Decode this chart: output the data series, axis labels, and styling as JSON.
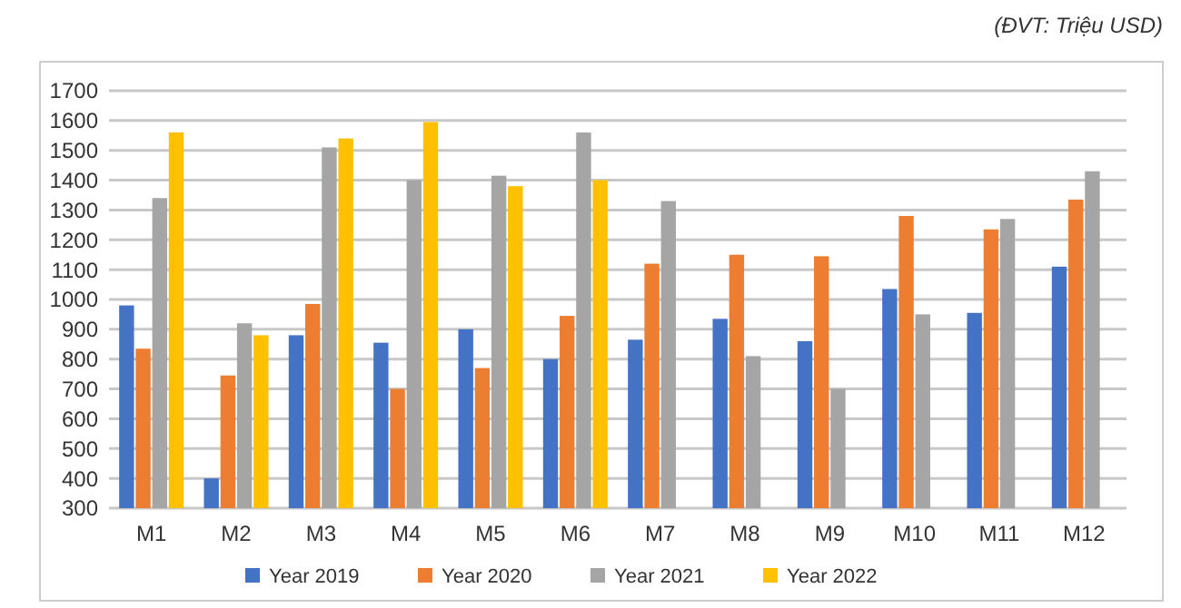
{
  "chart_data": {
    "type": "bar",
    "annotations": [
      "(ĐVT: Triệu USD)"
    ],
    "categories": [
      "M1",
      "M2",
      "M3",
      "M4",
      "M5",
      "M6",
      "M7",
      "M8",
      "M9",
      "M10",
      "M11",
      "M12"
    ],
    "series": [
      {
        "name": "Year 2019",
        "color": "#4472c4",
        "values": [
          980,
          400,
          880,
          855,
          900,
          800,
          865,
          935,
          860,
          1035,
          955,
          1110
        ]
      },
      {
        "name": "Year 2020",
        "color": "#ed7d31",
        "values": [
          835,
          745,
          985,
          700,
          770,
          945,
          1120,
          1150,
          1145,
          1280,
          1235,
          1335
        ]
      },
      {
        "name": "Year 2021",
        "color": "#a5a5a5",
        "values": [
          1340,
          920,
          1510,
          1400,
          1415,
          1560,
          1330,
          810,
          700,
          950,
          1270,
          1430
        ]
      },
      {
        "name": "Year 2022",
        "color": "#ffc000",
        "values": [
          1560,
          880,
          1540,
          1595,
          1380,
          1400,
          null,
          null,
          null,
          null,
          null,
          null
        ]
      }
    ],
    "ylim": [
      300,
      1700
    ],
    "yticks": [
      300,
      400,
      500,
      600,
      700,
      800,
      900,
      1000,
      1100,
      1200,
      1300,
      1400,
      1500,
      1600,
      1700
    ],
    "grid": "y",
    "legend": "bottom"
  }
}
